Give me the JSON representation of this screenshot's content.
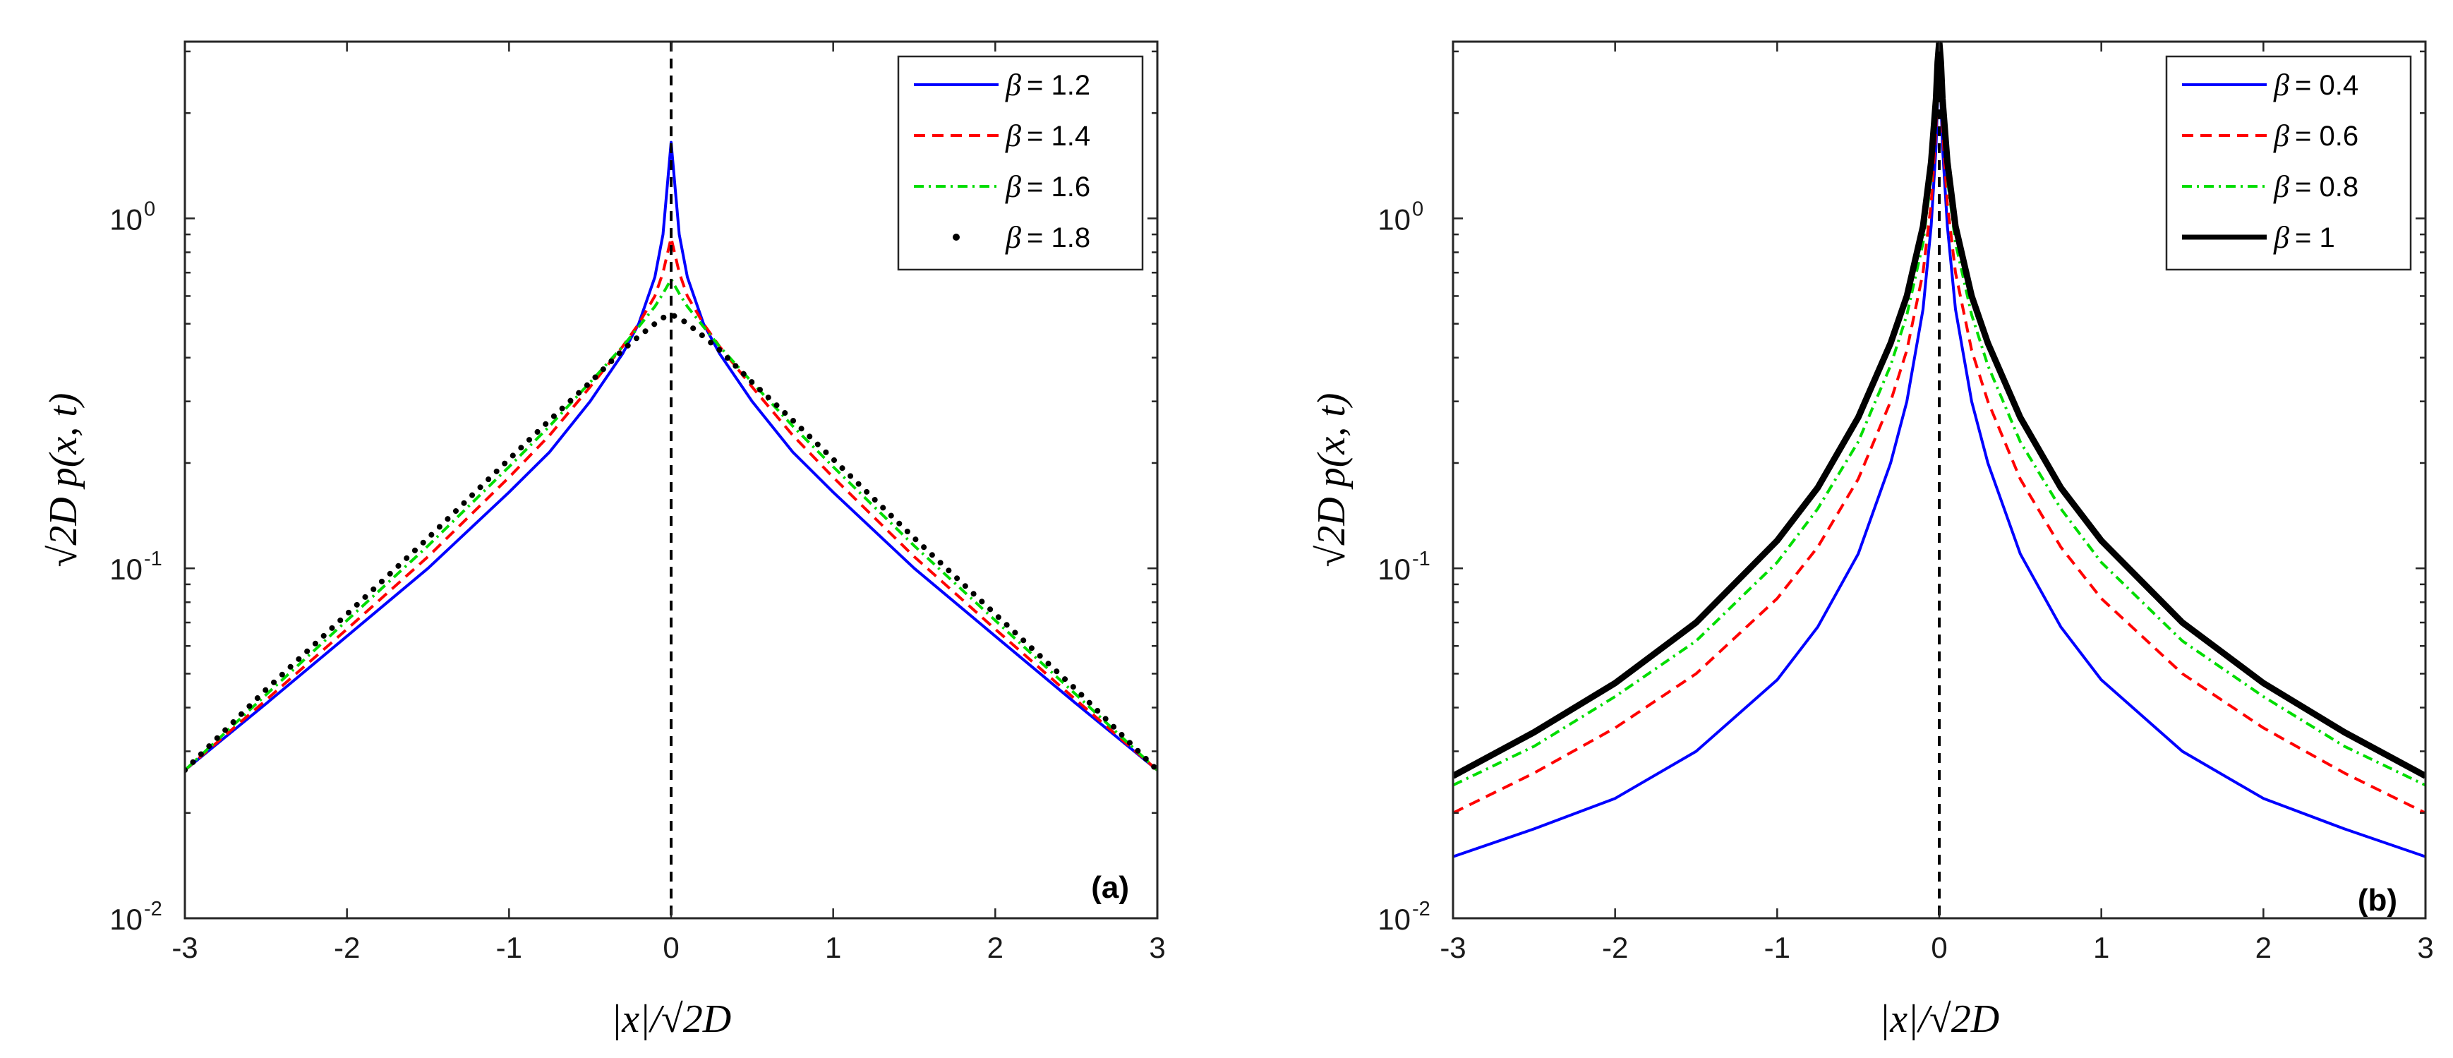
{
  "chart_data": [
    {
      "type": "line",
      "yscale": "log",
      "panel_label": "(a)",
      "xlabel": "|x|/√2D",
      "ylabel": "√2D p(x, t)",
      "xlim": [
        -3,
        3
      ],
      "ylim": [
        0.01,
        3.2
      ],
      "xticks": [
        "-3",
        "-2",
        "-1",
        "0",
        "1",
        "2",
        "3"
      ],
      "yticks": [
        {
          "base": "10",
          "exp": "0"
        },
        {
          "base": "10",
          "exp": "-1"
        },
        {
          "base": "10",
          "exp": "-2"
        }
      ],
      "legend_position": "top-right",
      "series": [
        {
          "name": "β = 1.2",
          "value_label": "1.2",
          "style": "solid",
          "color": "#0000ff",
          "peak": 1.65,
          "x": [
            0,
            0.05,
            0.1,
            0.2,
            0.3,
            0.5,
            0.75,
            1,
            1.5,
            2,
            2.5,
            3
          ],
          "y": [
            1.65,
            0.9,
            0.68,
            0.5,
            0.41,
            0.3,
            0.215,
            0.165,
            0.1,
            0.064,
            0.041,
            0.0265
          ]
        },
        {
          "name": "β = 1.4",
          "value_label": "1.4",
          "style": "dashed",
          "color": "#ff0000",
          "peak": 0.88,
          "x": [
            0,
            0.05,
            0.1,
            0.2,
            0.3,
            0.5,
            0.75,
            1,
            1.5,
            2,
            2.5,
            3
          ],
          "y": [
            0.88,
            0.7,
            0.6,
            0.5,
            0.43,
            0.33,
            0.24,
            0.182,
            0.108,
            0.067,
            0.042,
            0.0265
          ]
        },
        {
          "name": "β = 1.6",
          "value_label": "1.6",
          "style": "dashdot",
          "color": "#00dd00",
          "peak": 0.67,
          "x": [
            0,
            0.05,
            0.1,
            0.2,
            0.3,
            0.5,
            0.75,
            1,
            1.5,
            2,
            2.5,
            3
          ],
          "y": [
            0.67,
            0.61,
            0.56,
            0.49,
            0.43,
            0.34,
            0.255,
            0.195,
            0.116,
            0.071,
            0.0435,
            0.0265
          ]
        },
        {
          "name": "β = 1.8",
          "value_label": "1.8",
          "style": "dotted",
          "color": "#000000",
          "peak": 0.53,
          "x": [
            0,
            0.05,
            0.1,
            0.2,
            0.3,
            0.5,
            0.75,
            1,
            1.5,
            2,
            2.5,
            3
          ],
          "y": [
            0.53,
            0.52,
            0.5,
            0.46,
            0.42,
            0.34,
            0.265,
            0.205,
            0.122,
            0.074,
            0.045,
            0.0265
          ]
        }
      ]
    },
    {
      "type": "line",
      "yscale": "log",
      "panel_label": "(b)",
      "xlabel": "|x|/√2D",
      "ylabel": "√2D p(x, t)",
      "xlim": [
        -3,
        3
      ],
      "ylim": [
        0.01,
        3.2
      ],
      "xticks": [
        "-3",
        "-2",
        "-1",
        "0",
        "1",
        "2",
        "3"
      ],
      "yticks": [
        {
          "base": "10",
          "exp": "0"
        },
        {
          "base": "10",
          "exp": "-1"
        },
        {
          "base": "10",
          "exp": "-2"
        }
      ],
      "legend_position": "top-right",
      "series": [
        {
          "name": "β = 0.4",
          "value_label": "0.4",
          "style": "solid",
          "color": "#0000ff",
          "peak": 3.2,
          "x": [
            0,
            0.01,
            0.02,
            0.05,
            0.1,
            0.2,
            0.3,
            0.5,
            0.75,
            1,
            1.5,
            2,
            2.5,
            3
          ],
          "y": [
            3.2,
            2.2,
            1.6,
            0.95,
            0.55,
            0.3,
            0.2,
            0.11,
            0.068,
            0.048,
            0.03,
            0.022,
            0.018,
            0.015
          ]
        },
        {
          "name": "β = 0.6",
          "value_label": "0.6",
          "style": "dashed",
          "color": "#ff0000",
          "peak": 3.2,
          "x": [
            0,
            0.01,
            0.02,
            0.05,
            0.1,
            0.2,
            0.3,
            0.5,
            0.75,
            1,
            1.5,
            2,
            2.5,
            3
          ],
          "y": [
            3.2,
            2.4,
            1.8,
            1.1,
            0.7,
            0.42,
            0.3,
            0.18,
            0.115,
            0.082,
            0.05,
            0.035,
            0.026,
            0.02
          ]
        },
        {
          "name": "β = 0.8",
          "value_label": "0.8",
          "style": "dashdot",
          "color": "#00dd00",
          "peak": 3.2,
          "x": [
            0,
            0.01,
            0.02,
            0.05,
            0.1,
            0.2,
            0.3,
            0.5,
            0.75,
            1,
            1.5,
            2,
            2.5,
            3
          ],
          "y": [
            3.2,
            2.6,
            2.0,
            1.3,
            0.85,
            0.53,
            0.38,
            0.23,
            0.148,
            0.104,
            0.062,
            0.043,
            0.031,
            0.024
          ]
        },
        {
          "name": "β = 1",
          "value_label": "1",
          "style": "thick",
          "color": "#000000",
          "peak": 3.2,
          "x": [
            0,
            0.01,
            0.02,
            0.05,
            0.1,
            0.2,
            0.3,
            0.5,
            0.75,
            1,
            1.5,
            2,
            2.5,
            3
          ],
          "y": [
            3.2,
            2.8,
            2.2,
            1.45,
            0.95,
            0.6,
            0.44,
            0.27,
            0.17,
            0.12,
            0.07,
            0.047,
            0.034,
            0.0255
          ]
        }
      ]
    }
  ]
}
